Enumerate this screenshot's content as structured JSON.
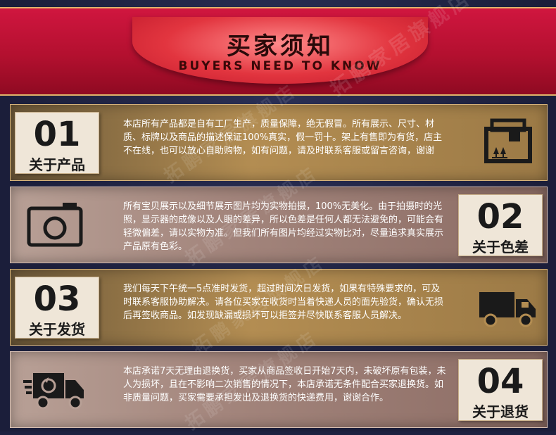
{
  "header": {
    "title_zh": "买家须知",
    "title_en": "BUYERS NEED TO KNOW",
    "watermark": "拓鹏家居旗舰店"
  },
  "rows": [
    {
      "number": "01",
      "label": "关于产品",
      "icon": "package-box-icon",
      "text": "本店所有产品都是自有工厂生产，质量保障，绝无假冒。所有展示、尺寸、材质、标牌以及商品的描述保证100%真实，假一罚十。架上有售即为有货，店主不在线，也可以放心自助购物，如有问题，请及时联系客服或留言咨询，谢谢"
    },
    {
      "number": "02",
      "label": "关于色差",
      "icon": "camera-icon",
      "text": "所有宝贝展示以及细节展示图片均为实物拍摄，100%无美化。由于拍摄时的光照，显示器的成像以及人眼的差异，所以色差是任何人都无法避免的，可能会有轻微偏差，请以实物为准。但我们所有图片均经过实物比对，尽量追求真实展示产品原有色彩。"
    },
    {
      "number": "03",
      "label": "关于发货",
      "icon": "delivery-truck-icon",
      "text": "我们每天下午统一5点准时发货，超过时间次日发货，如果有特殊要求的，可及时联系客服协助解决。请各位买家在收货时当着快递人员的面先验货，确认无损后再签收商品。如发现缺漏或损坏可以拒签并尽快联系客服人员解决。"
    },
    {
      "number": "04",
      "label": "关于退货",
      "icon": "return-truck-icon",
      "text": "本店承诺7天无理由退换货，买家从商品签收日开始7天内，未破坏原有包装，未人为损坏，且在不影响二次销售的情况下，本店承诺无条件配合买家退换货。如非质量问题，买家需要承担发出及退换货的快递费用，谢谢合作。"
    }
  ]
}
